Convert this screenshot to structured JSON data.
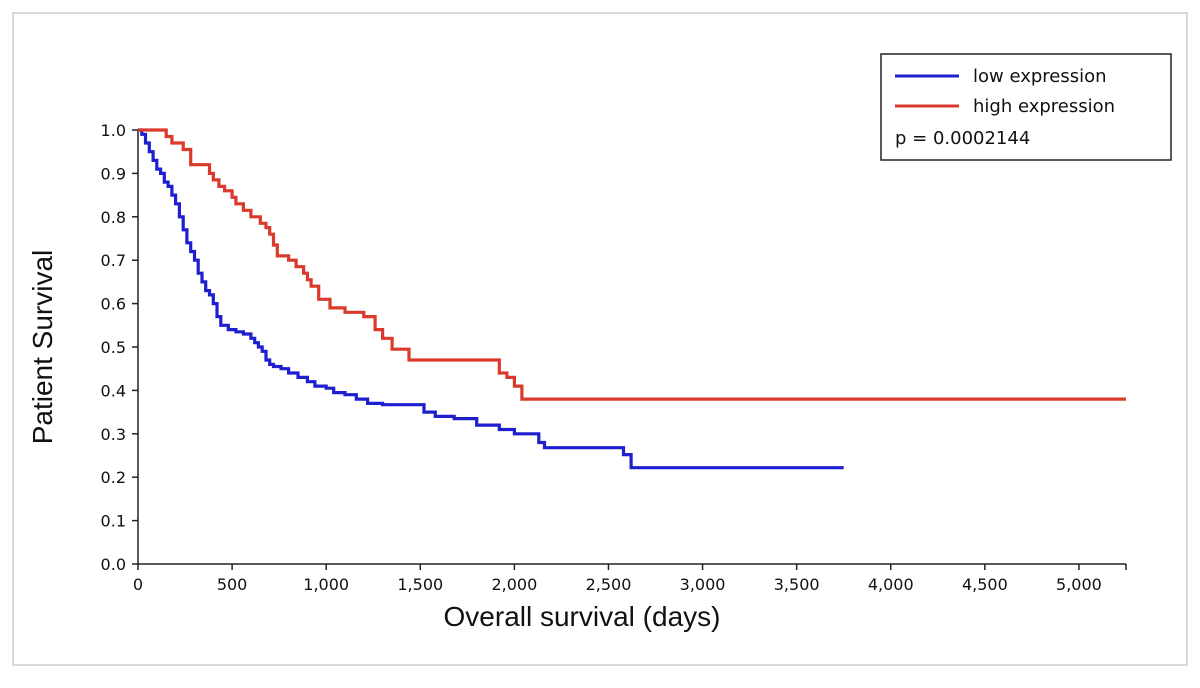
{
  "chart_data": {
    "type": "line",
    "subtype": "kaplan-meier step curve",
    "title": "",
    "xlabel": "Overall survival (days)",
    "ylabel": "Patient Survival",
    "xlim": [
      0,
      5250
    ],
    "ylim": [
      0,
      1.0
    ],
    "xticks": [
      0,
      500,
      1000,
      1500,
      2000,
      2500,
      3000,
      3500,
      4000,
      4500,
      5000
    ],
    "xtick_labels": [
      "0",
      "500",
      "1,000",
      "1,500",
      "2,000",
      "2,500",
      "3,000",
      "3,500",
      "4,000",
      "4,500",
      "5,000"
    ],
    "yticks": [
      0.0,
      0.1,
      0.2,
      0.3,
      0.4,
      0.5,
      0.6,
      0.7,
      0.8,
      0.9,
      1.0
    ],
    "ytick_labels": [
      "0.0",
      "0.1",
      "0.2",
      "0.3",
      "0.4",
      "0.5",
      "0.6",
      "0.7",
      "0.8",
      "0.9",
      "1.0"
    ],
    "legend_position": "top-right",
    "annotation": "p = 0.0002144",
    "series": [
      {
        "name": "low expression",
        "color": "#1f1fcf",
        "x": [
          0,
          20,
          40,
          60,
          80,
          100,
          120,
          140,
          160,
          180,
          200,
          220,
          240,
          260,
          280,
          300,
          320,
          340,
          360,
          380,
          400,
          420,
          440,
          480,
          520,
          560,
          600,
          620,
          640,
          660,
          680,
          700,
          720,
          760,
          800,
          850,
          900,
          940,
          1000,
          1040,
          1100,
          1160,
          1220,
          1300,
          1400,
          1520,
          1580,
          1680,
          1800,
          1920,
          2000,
          2130,
          2160,
          2580,
          2620,
          3000,
          3750
        ],
        "y": [
          1.0,
          0.99,
          0.97,
          0.95,
          0.93,
          0.91,
          0.9,
          0.88,
          0.87,
          0.85,
          0.83,
          0.8,
          0.77,
          0.74,
          0.72,
          0.7,
          0.67,
          0.65,
          0.63,
          0.62,
          0.6,
          0.57,
          0.55,
          0.54,
          0.535,
          0.53,
          0.52,
          0.51,
          0.5,
          0.49,
          0.47,
          0.46,
          0.455,
          0.45,
          0.44,
          0.43,
          0.42,
          0.41,
          0.405,
          0.395,
          0.39,
          0.38,
          0.37,
          0.367,
          0.367,
          0.35,
          0.34,
          0.335,
          0.32,
          0.31,
          0.3,
          0.28,
          0.268,
          0.252,
          0.222,
          0.222,
          0.222
        ]
      },
      {
        "name": "high expression",
        "color": "#d93a2b",
        "x": [
          0,
          20,
          150,
          180,
          240,
          280,
          380,
          400,
          430,
          460,
          500,
          520,
          560,
          600,
          650,
          680,
          700,
          720,
          740,
          800,
          840,
          880,
          900,
          920,
          960,
          1020,
          1100,
          1200,
          1260,
          1300,
          1350,
          1440,
          1800,
          1920,
          1960,
          2000,
          2040,
          2400,
          3000,
          4000,
          5250
        ],
        "y": [
          1.0,
          1.0,
          0.985,
          0.97,
          0.955,
          0.92,
          0.9,
          0.885,
          0.87,
          0.86,
          0.845,
          0.83,
          0.815,
          0.8,
          0.785,
          0.775,
          0.76,
          0.735,
          0.71,
          0.7,
          0.685,
          0.67,
          0.655,
          0.64,
          0.61,
          0.59,
          0.58,
          0.57,
          0.54,
          0.52,
          0.495,
          0.47,
          0.47,
          0.44,
          0.43,
          0.41,
          0.38,
          0.38,
          0.38,
          0.38,
          0.38
        ]
      }
    ]
  }
}
